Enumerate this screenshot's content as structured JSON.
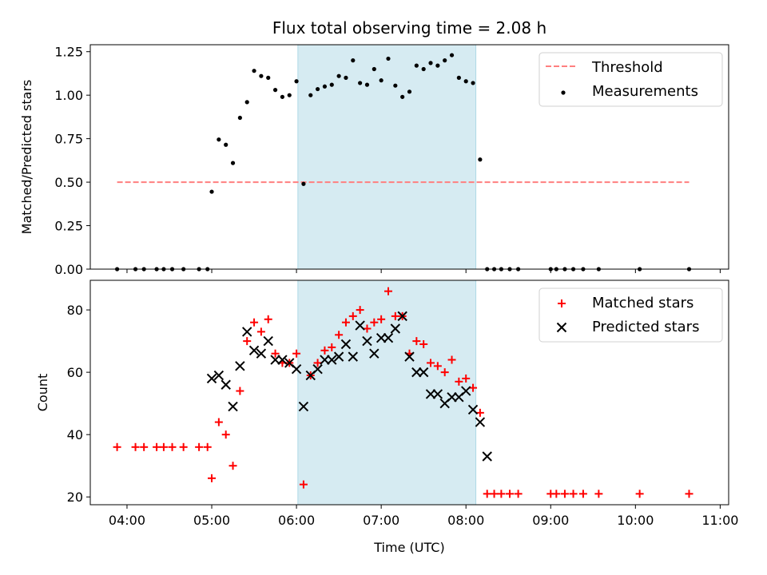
{
  "chart_data": [
    {
      "type": "scatter",
      "title": "Flux total observing time = 2.08 h",
      "xlabel": "",
      "ylabel": "Matched/Predicted stars",
      "xlim": [
        "03:34",
        "11:06"
      ],
      "ylim": [
        0,
        1.29
      ],
      "yticks": [
        0.0,
        0.25,
        0.5,
        0.75,
        1.0,
        1.25
      ],
      "ytick_labels": [
        "0.00",
        "0.25",
        "0.50",
        "0.75",
        "1.00",
        "1.25"
      ],
      "highlight_span": {
        "start": "06:01",
        "end": "08:07",
        "color": "#add8e6"
      },
      "threshold": {
        "name": "Threshold",
        "y": 0.5,
        "x_start": "03:53",
        "x_end": "10:38",
        "color": "#ff7f7f",
        "style": "dashed"
      },
      "series": [
        {
          "name": "Measurements",
          "color": "#000000",
          "marker": "dot",
          "points": [
            [
              "03:53",
              0.0
            ],
            [
              "04:06",
              0.0
            ],
            [
              "04:12",
              0.0
            ],
            [
              "04:21",
              0.0
            ],
            [
              "04:26",
              0.0
            ],
            [
              "04:32",
              0.0
            ],
            [
              "04:40",
              0.0
            ],
            [
              "04:51",
              0.0
            ],
            [
              "04:57",
              0.0
            ],
            [
              "05:00",
              0.445
            ],
            [
              "05:05",
              0.745
            ],
            [
              "05:10",
              0.715
            ],
            [
              "05:15",
              0.61
            ],
            [
              "05:20",
              0.87
            ],
            [
              "05:25",
              0.96
            ],
            [
              "05:30",
              1.14
            ],
            [
              "05:35",
              1.11
            ],
            [
              "05:40",
              1.1
            ],
            [
              "05:45",
              1.03
            ],
            [
              "05:50",
              0.99
            ],
            [
              "05:55",
              1.0
            ],
            [
              "06:00",
              1.08
            ],
            [
              "06:05",
              0.49
            ],
            [
              "06:10",
              1.0
            ],
            [
              "06:15",
              1.035
            ],
            [
              "06:20",
              1.05
            ],
            [
              "06:25",
              1.06
            ],
            [
              "06:30",
              1.11
            ],
            [
              "06:35",
              1.1
            ],
            [
              "06:40",
              1.2
            ],
            [
              "06:45",
              1.07
            ],
            [
              "06:50",
              1.06
            ],
            [
              "06:55",
              1.15
            ],
            [
              "07:00",
              1.085
            ],
            [
              "07:05",
              1.21
            ],
            [
              "07:10",
              1.055
            ],
            [
              "07:15",
              0.99
            ],
            [
              "07:20",
              1.02
            ],
            [
              "07:25",
              1.17
            ],
            [
              "07:30",
              1.15
            ],
            [
              "07:35",
              1.185
            ],
            [
              "07:40",
              1.17
            ],
            [
              "07:45",
              1.2
            ],
            [
              "07:50",
              1.23
            ],
            [
              "07:55",
              1.1
            ],
            [
              "08:00",
              1.08
            ],
            [
              "08:05",
              1.07
            ],
            [
              "08:10",
              0.63
            ],
            [
              "08:15",
              0.0
            ],
            [
              "08:20",
              0.0
            ],
            [
              "08:25",
              0.0
            ],
            [
              "08:31",
              0.0
            ],
            [
              "08:37",
              0.0
            ],
            [
              "09:00",
              0.0
            ],
            [
              "09:04",
              0.0
            ],
            [
              "09:10",
              0.0
            ],
            [
              "09:16",
              0.0
            ],
            [
              "09:23",
              0.0
            ],
            [
              "09:34",
              0.0
            ],
            [
              "10:03",
              0.0
            ],
            [
              "10:38",
              0.0
            ]
          ]
        }
      ],
      "legend": {
        "placement": "top-right",
        "entries": [
          "Threshold",
          "Measurements"
        ]
      }
    },
    {
      "type": "scatter",
      "title": "",
      "xlabel": "Time (UTC)",
      "ylabel": "Count",
      "xlim": [
        "03:34",
        "11:06"
      ],
      "ylim": [
        17.5,
        89.5
      ],
      "xticks": [
        "04:00",
        "05:00",
        "06:00",
        "07:00",
        "08:00",
        "09:00",
        "10:00",
        "11:00"
      ],
      "yticks": [
        20,
        40,
        60,
        80
      ],
      "ytick_labels": [
        "20",
        "40",
        "60",
        "80"
      ],
      "highlight_span": {
        "start": "06:01",
        "end": "08:07",
        "color": "#add8e6"
      },
      "series": [
        {
          "name": "Matched stars",
          "color": "#ff0000",
          "marker": "plus",
          "points": [
            [
              "03:53",
              36
            ],
            [
              "04:06",
              36
            ],
            [
              "04:12",
              36
            ],
            [
              "04:21",
              36
            ],
            [
              "04:26",
              36
            ],
            [
              "04:32",
              36
            ],
            [
              "04:40",
              36
            ],
            [
              "04:51",
              36
            ],
            [
              "04:57",
              36
            ],
            [
              "05:00",
              26
            ],
            [
              "05:05",
              44
            ],
            [
              "05:10",
              40
            ],
            [
              "05:15",
              30
            ],
            [
              "05:20",
              54
            ],
            [
              "05:25",
              70
            ],
            [
              "05:30",
              76
            ],
            [
              "05:35",
              73
            ],
            [
              "05:40",
              77
            ],
            [
              "05:45",
              66
            ],
            [
              "05:50",
              63
            ],
            [
              "05:55",
              63
            ],
            [
              "06:00",
              66
            ],
            [
              "06:05",
              24
            ],
            [
              "06:10",
              59
            ],
            [
              "06:15",
              63
            ],
            [
              "06:20",
              67
            ],
            [
              "06:25",
              68
            ],
            [
              "06:30",
              72
            ],
            [
              "06:35",
              76
            ],
            [
              "06:40",
              78
            ],
            [
              "06:45",
              80
            ],
            [
              "06:50",
              74
            ],
            [
              "06:55",
              76
            ],
            [
              "07:00",
              77
            ],
            [
              "07:05",
              86
            ],
            [
              "07:10",
              78
            ],
            [
              "07:15",
              78
            ],
            [
              "07:20",
              66
            ],
            [
              "07:25",
              70
            ],
            [
              "07:30",
              69
            ],
            [
              "07:35",
              63
            ],
            [
              "07:40",
              62
            ],
            [
              "07:45",
              60
            ],
            [
              "07:50",
              64
            ],
            [
              "07:55",
              57
            ],
            [
              "08:00",
              58
            ],
            [
              "08:05",
              55
            ],
            [
              "08:10",
              47
            ],
            [
              "08:15",
              21
            ],
            [
              "08:20",
              21
            ],
            [
              "08:25",
              21
            ],
            [
              "08:31",
              21
            ],
            [
              "08:37",
              21
            ],
            [
              "09:00",
              21
            ],
            [
              "09:04",
              21
            ],
            [
              "09:10",
              21
            ],
            [
              "09:16",
              21
            ],
            [
              "09:23",
              21
            ],
            [
              "09:34",
              21
            ],
            [
              "10:03",
              21
            ],
            [
              "10:38",
              21
            ]
          ]
        },
        {
          "name": "Predicted stars",
          "color": "#000000",
          "marker": "x",
          "points": [
            [
              "05:00",
              58
            ],
            [
              "05:05",
              59
            ],
            [
              "05:10",
              56
            ],
            [
              "05:15",
              49
            ],
            [
              "05:20",
              62
            ],
            [
              "05:25",
              73
            ],
            [
              "05:30",
              67
            ],
            [
              "05:35",
              66
            ],
            [
              "05:40",
              70
            ],
            [
              "05:45",
              64
            ],
            [
              "05:50",
              64
            ],
            [
              "05:55",
              63
            ],
            [
              "06:00",
              61
            ],
            [
              "06:05",
              49
            ],
            [
              "06:10",
              59
            ],
            [
              "06:15",
              61
            ],
            [
              "06:20",
              64
            ],
            [
              "06:25",
              64
            ],
            [
              "06:30",
              65
            ],
            [
              "06:35",
              69
            ],
            [
              "06:40",
              65
            ],
            [
              "06:45",
              75
            ],
            [
              "06:50",
              70
            ],
            [
              "06:55",
              66
            ],
            [
              "07:00",
              71
            ],
            [
              "07:05",
              71
            ],
            [
              "07:10",
              74
            ],
            [
              "07:15",
              78
            ],
            [
              "07:20",
              65
            ],
            [
              "07:25",
              60
            ],
            [
              "07:30",
              60
            ],
            [
              "07:35",
              53
            ],
            [
              "07:40",
              53
            ],
            [
              "07:45",
              50
            ],
            [
              "07:50",
              52
            ],
            [
              "07:55",
              52
            ],
            [
              "08:00",
              54
            ],
            [
              "08:05",
              48
            ],
            [
              "08:10",
              44
            ],
            [
              "08:15",
              33
            ]
          ]
        }
      ],
      "legend": {
        "placement": "top-right",
        "entries": [
          "Matched stars",
          "Predicted stars"
        ]
      }
    }
  ]
}
